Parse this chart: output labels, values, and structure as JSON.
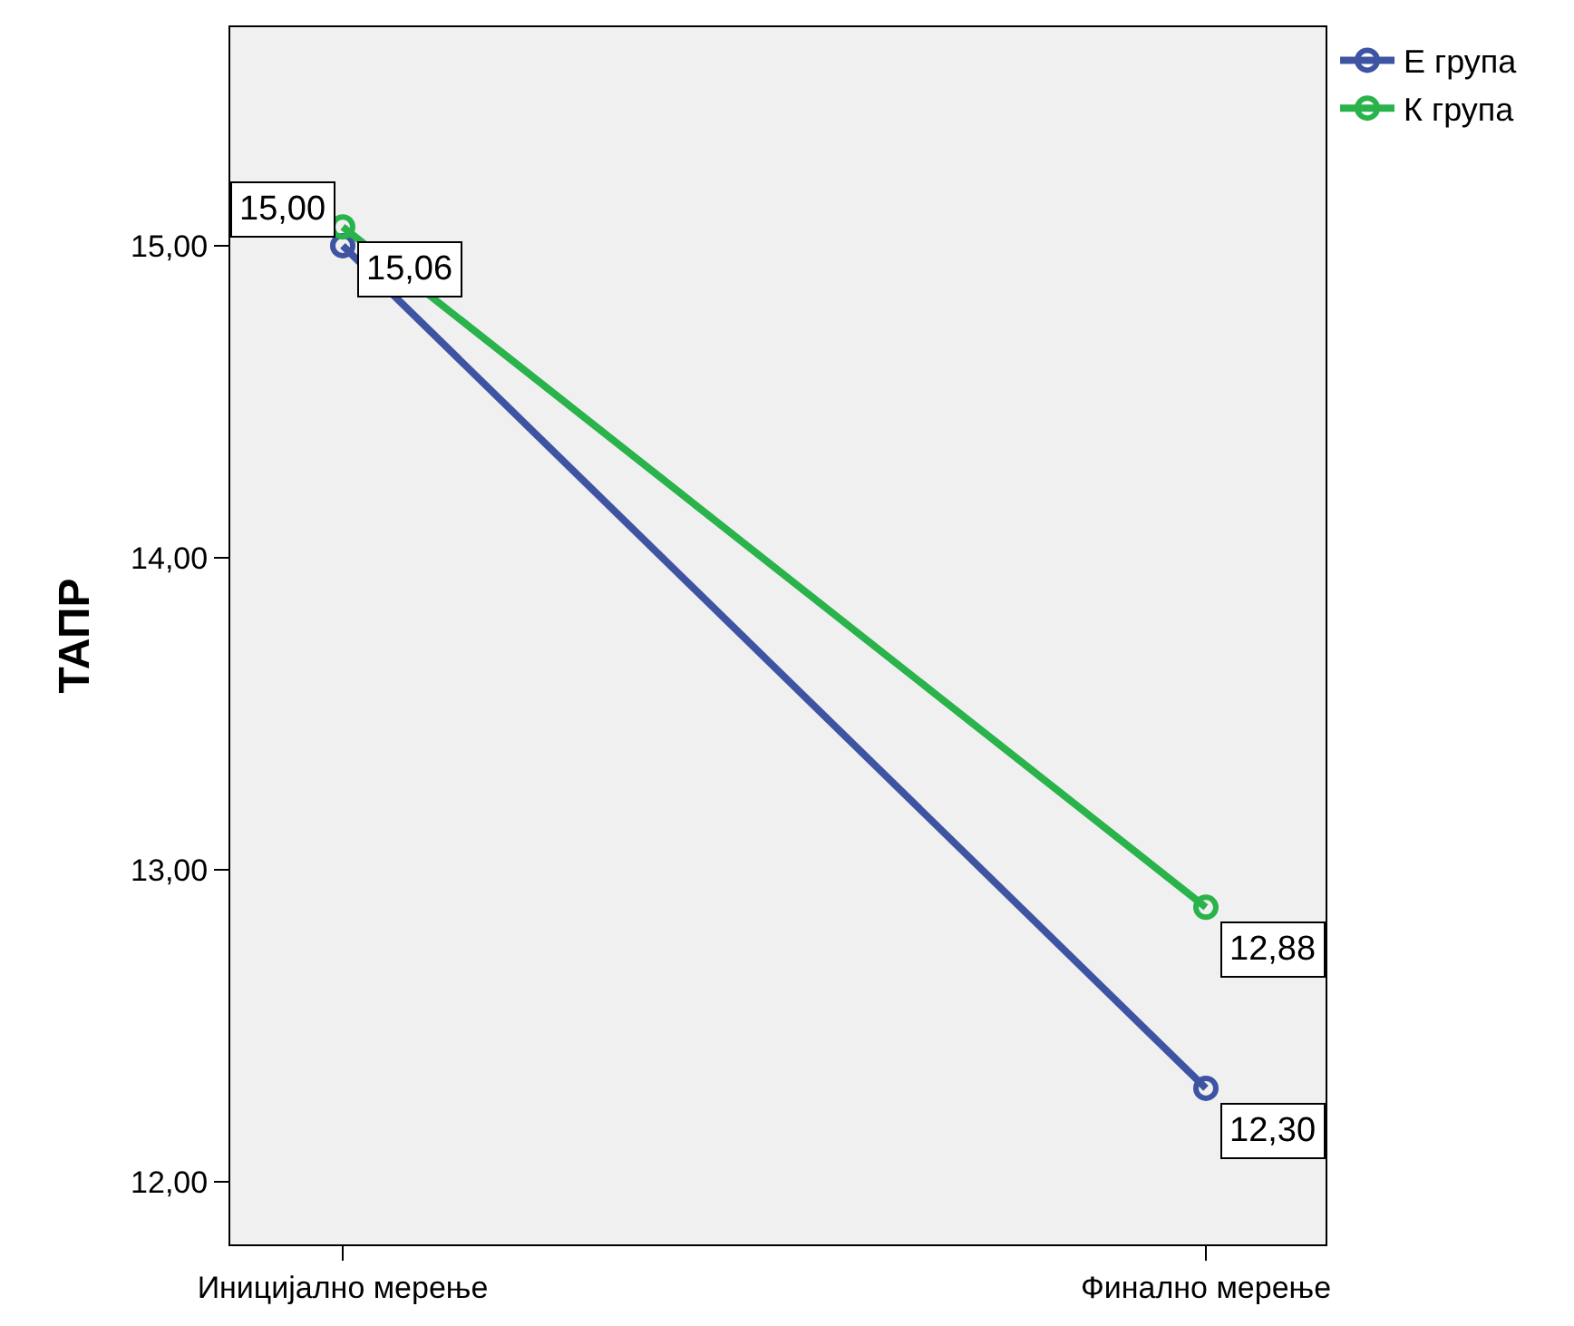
{
  "chart_data": {
    "type": "line",
    "ylabel": "ТАПР",
    "categories": [
      "Иницијално мерење",
      "Финално мерење"
    ],
    "series": [
      {
        "name": "Е група",
        "color": "#3e54a3",
        "values": [
          15.0,
          12.3
        ],
        "value_labels": [
          "15,00",
          "12,30"
        ]
      },
      {
        "name": "К група",
        "color": "#2ab34a",
        "values": [
          15.06,
          12.88
        ],
        "value_labels": [
          "15,06",
          "12,88"
        ]
      }
    ],
    "ylim": [
      11.8,
      15.7
    ],
    "yticks": [
      {
        "value": 12,
        "label": "12,00"
      },
      {
        "value": 13,
        "label": "13,00"
      },
      {
        "value": 14,
        "label": "14,00"
      },
      {
        "value": 15,
        "label": "15,00"
      }
    ],
    "marker": "circle",
    "line_style": "solid",
    "grid": false,
    "legend": "top right"
  }
}
